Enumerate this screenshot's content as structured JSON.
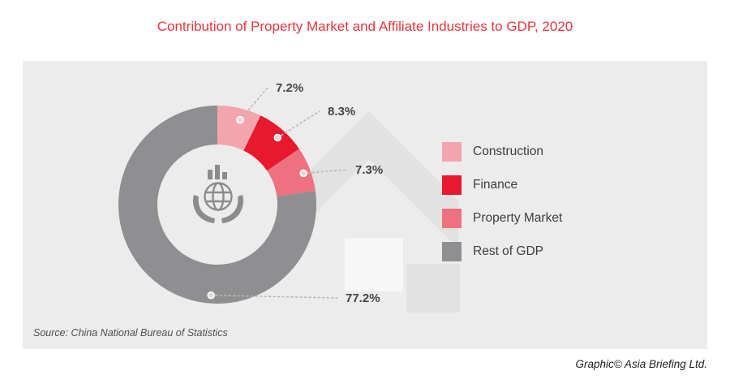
{
  "page": {
    "title": "Contribution of Property Market and Affiliate Industries to GDP, 2020",
    "source": "Source: China National Bureau of Statistics",
    "credit": "Graphic© Asia Briefing Ltd."
  },
  "colors": {
    "title": "#e8363e",
    "panel": "#ececec",
    "watermark": "#e2e2e2",
    "watermark_light": "#f7f7f7",
    "label_text": "#454545",
    "leader": "#b9b9b9",
    "icon": "#8c8c8c"
  },
  "chart_data": {
    "type": "pie",
    "donut": true,
    "title": "Contribution of Property Market and Affiliate Industries to GDP, 2020",
    "labels": [
      "Construction",
      "Finance",
      "Property Market",
      "Rest of GDP"
    ],
    "values": [
      7.2,
      8.3,
      7.3,
      77.2
    ],
    "point_labels": [
      "7.2%",
      "8.3%",
      "7.3%",
      "77.2%"
    ],
    "colors": [
      "#f3a5ae",
      "#e8192f",
      "#ee7180",
      "#8f8f91"
    ],
    "legend_position": "right",
    "start_angle_deg": 0,
    "direction": "clockwise"
  }
}
